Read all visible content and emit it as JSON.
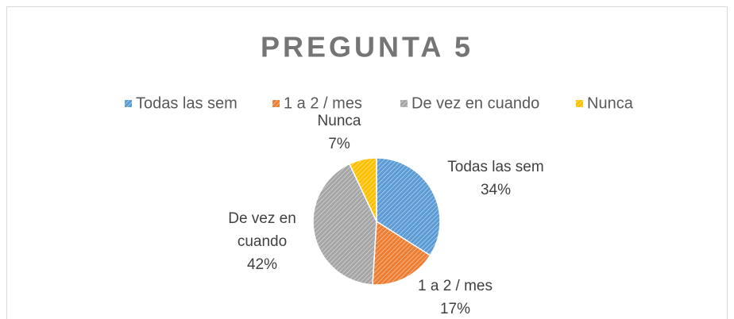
{
  "chart_data": {
    "type": "pie",
    "title": "PREGUNTA 5",
    "categories": [
      "Todas las sem",
      "1 a 2 / mes",
      "De vez en cuando",
      "Nunca"
    ],
    "values": [
      34,
      17,
      42,
      7
    ],
    "value_labels": [
      "34%",
      "17%",
      "42%",
      "7%"
    ],
    "colors": [
      "#5b9bd5",
      "#ed7d31",
      "#a5a5a5",
      "#ffc000"
    ],
    "legend": "top"
  }
}
